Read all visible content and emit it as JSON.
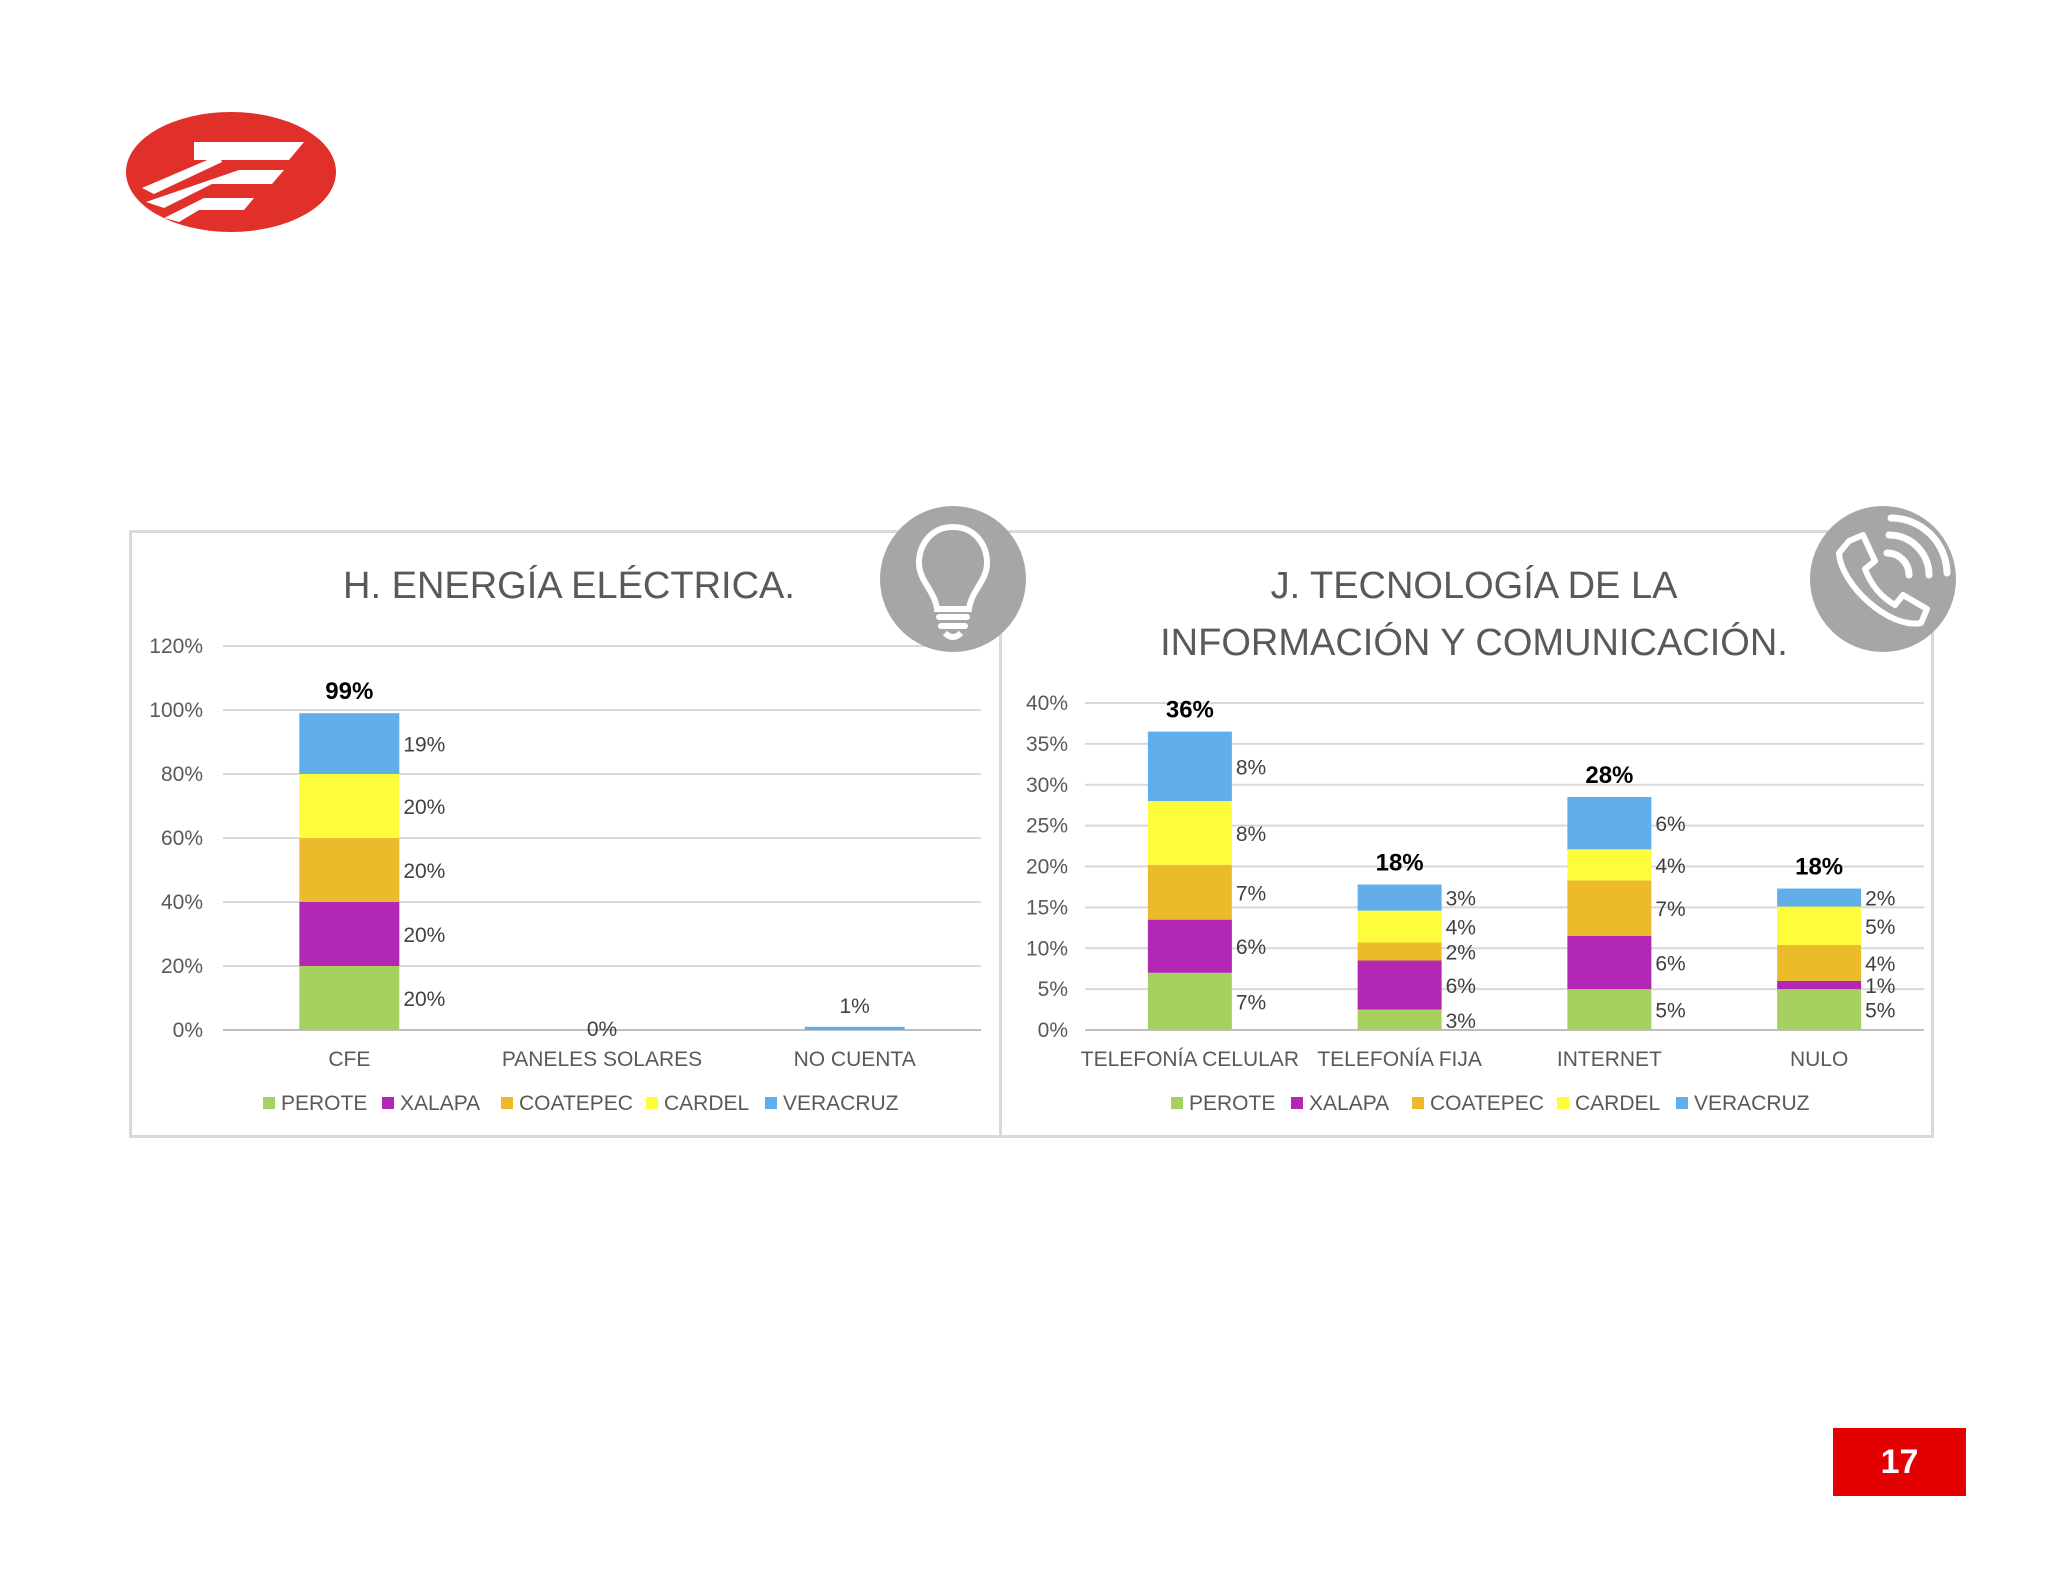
{
  "page_number": "17",
  "icons": {
    "energy": "lightbulb-icon",
    "tic": "phone-signal-icon"
  },
  "series_colors": {
    "PEROTE": "#a6d15f",
    "XALAPA": "#b327b5",
    "COATEPEC": "#ecbb2c",
    "CARDEL": "#fdfd3c",
    "VERACRUZ": "#62aeea"
  },
  "chart_data": [
    {
      "type": "bar",
      "stacked": true,
      "title": "H. ENERGÍA ELÉCTRICA.",
      "categories": [
        "CFE",
        "PANELES SOLARES",
        "NO CUENTA"
      ],
      "series": [
        {
          "name": "PEROTE",
          "values": [
            20,
            0,
            0
          ]
        },
        {
          "name": "XALAPA",
          "values": [
            20,
            0,
            0
          ]
        },
        {
          "name": "COATEPEC",
          "values": [
            20,
            0,
            0
          ]
        },
        {
          "name": "CARDEL",
          "values": [
            20,
            0,
            0
          ]
        },
        {
          "name": "VERACRUZ",
          "values": [
            19,
            0,
            1
          ]
        }
      ],
      "segment_labels": [
        [
          "20%",
          "20%",
          "20%",
          "20%",
          "19%"
        ],
        [],
        []
      ],
      "totals": [
        "99%",
        "0%",
        "1%"
      ],
      "yticks": [
        "0%",
        "20%",
        "40%",
        "60%",
        "80%",
        "100%",
        "120%"
      ],
      "ylim": [
        0,
        120
      ],
      "grid": true,
      "legend": "bottom",
      "legend_entries": [
        "PEROTE",
        "XALAPA",
        "COATEPEC",
        "CARDEL",
        "VERACRUZ"
      ]
    },
    {
      "type": "bar",
      "stacked": true,
      "title": "J. TECNOLOGÍA DE LA INFORMACIÓN Y COMUNICACIÓN.",
      "title_lines": [
        "J. TECNOLOGÍA DE LA",
        "INFORMACIÓN Y COMUNICACIÓN."
      ],
      "categories": [
        "TELEFONÍA CELULAR",
        "TELEFONÍA FIJA",
        "INTERNET",
        "NULO"
      ],
      "series": [
        {
          "name": "PEROTE",
          "values": [
            7,
            2.5,
            5,
            5
          ]
        },
        {
          "name": "XALAPA",
          "values": [
            6.5,
            6,
            6.5,
            1
          ]
        },
        {
          "name": "COATEPEC",
          "values": [
            6.7,
            2.2,
            6.8,
            4.4
          ]
        },
        {
          "name": "CARDEL",
          "values": [
            7.8,
            3.9,
            3.8,
            4.7
          ]
        },
        {
          "name": "VERACRUZ",
          "values": [
            8.5,
            3.2,
            6.4,
            2.2
          ]
        }
      ],
      "segment_labels": [
        [
          "7%",
          "6%",
          "7%",
          "8%",
          "8%"
        ],
        [
          "3%",
          "6%",
          "2%",
          "4%",
          "3%"
        ],
        [
          "5%",
          "6%",
          "7%",
          "4%",
          "6%"
        ],
        [
          "5%",
          "1%",
          "4%",
          "5%",
          "2%"
        ]
      ],
      "totals": [
        "36%",
        "18%",
        "28%",
        "18%"
      ],
      "yticks": [
        "0%",
        "5%",
        "10%",
        "15%",
        "20%",
        "25%",
        "30%",
        "35%",
        "40%"
      ],
      "ylim": [
        0,
        40
      ],
      "grid": true,
      "legend": "bottom",
      "legend_entries": [
        "PEROTE",
        "XALAPA",
        "COATEPEC",
        "CARDEL",
        "VERACRUZ"
      ]
    }
  ]
}
